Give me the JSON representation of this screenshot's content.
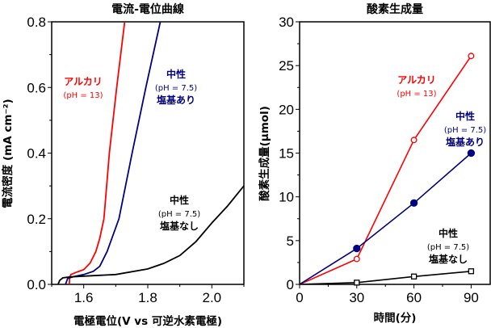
{
  "chart_data": [
    {
      "type": "line",
      "title": "電流-電位曲線",
      "xlabel": "電極電位(V vs 可逆水素電極)",
      "ylabel": "電流密度 (mA cm⁻²)",
      "xlim": [
        1.5,
        2.1
      ],
      "ylim": [
        0,
        0.8
      ],
      "xticks": [
        "1.6",
        "1.8",
        "2.0"
      ],
      "xtick_values": [
        1.6,
        1.8,
        2.0
      ],
      "yticks": [
        "0.0",
        "0.2",
        "0.4",
        "0.6",
        "0.8"
      ],
      "ytick_values": [
        0,
        0.2,
        0.4,
        0.6,
        0.8
      ],
      "grid": false,
      "series": [
        {
          "color": "#ff0000",
          "x": [
            1.555,
            1.556,
            1.56,
            1.58,
            1.6,
            1.62,
            1.638,
            1.65,
            1.663,
            1.68,
            1.703,
            1.728
          ],
          "y": [
            0,
            0.02,
            0.03,
            0.038,
            0.045,
            0.065,
            0.1,
            0.14,
            0.2,
            0.4,
            0.6,
            0.8
          ]
        },
        {
          "color": "#000080",
          "x": [
            1.543,
            1.55,
            1.57,
            1.6,
            1.63,
            1.65,
            1.673,
            1.71,
            1.751,
            1.794,
            1.839
          ],
          "y": [
            0,
            0.018,
            0.024,
            0.03,
            0.04,
            0.055,
            0.1,
            0.2,
            0.4,
            0.6,
            0.8
          ]
        },
        {
          "color": "#000000",
          "x": [
            1.52,
            1.525,
            1.535,
            1.56,
            1.6,
            1.7,
            1.8,
            1.85,
            1.9,
            1.95,
            2.0,
            2.05,
            2.1
          ],
          "y": [
            0,
            0.012,
            0.02,
            0.023,
            0.025,
            0.03,
            0.047,
            0.064,
            0.088,
            0.13,
            0.187,
            0.24,
            0.3
          ]
        }
      ],
      "annotations": [
        {
          "lines": [
            "アルカリ",
            "(pH = 13)"
          ],
          "color": "#ff0000"
        },
        {
          "lines": [
            "中性",
            "(pH = 7.5)",
            "塩基あり"
          ],
          "color": "#000080"
        },
        {
          "lines": [
            "中性",
            "(pH = 7.5)",
            "塩基なし"
          ],
          "color": "#000000"
        }
      ]
    },
    {
      "type": "line",
      "title": "酸素生成量",
      "xlabel": "時間(分)",
      "ylabel": "酸素生成量(μmol)",
      "xlim": [
        0,
        100
      ],
      "ylim": [
        0,
        30
      ],
      "xticks": [
        "0",
        "30",
        "60",
        "90"
      ],
      "xtick_values": [
        0,
        30,
        60,
        90
      ],
      "yticks": [
        "0",
        "5",
        "10",
        "15",
        "20",
        "25",
        "30"
      ],
      "ytick_values": [
        0,
        5,
        10,
        15,
        20,
        25,
        30
      ],
      "grid": false,
      "x": [
        0,
        30,
        60,
        90
      ],
      "series": [
        {
          "color": "#ff0000",
          "marker": "open-circle",
          "values": [
            0,
            2.9,
            16.5,
            26.1
          ]
        },
        {
          "color": "#000080",
          "marker": "filled-circle",
          "values": [
            0,
            4.1,
            9.3,
            15.0
          ]
        },
        {
          "color": "#000000",
          "marker": "open-square",
          "values": [
            0,
            0.2,
            0.9,
            1.5
          ]
        }
      ],
      "annotations": [
        {
          "lines": [
            "アルカリ",
            "(pH = 13)"
          ],
          "color": "#ff0000"
        },
        {
          "lines": [
            "中性",
            "(pH = 7.5)",
            "塩基あり"
          ],
          "color": "#000080"
        },
        {
          "lines": [
            "中性",
            "(pH = 7.5)",
            "塩基なし"
          ],
          "color": "#000000"
        }
      ]
    }
  ]
}
